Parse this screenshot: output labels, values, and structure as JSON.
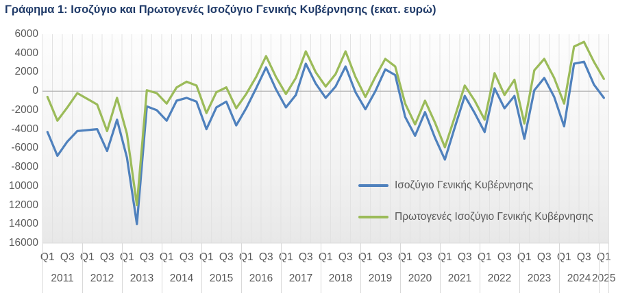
{
  "title": "Γράφημα 1: Ισοζύγιο και Πρωτογενές Ισοζύγιο Γενικής Κυβέρνησης (εκατ. ευρώ)",
  "colors": {
    "title_text": "#1f3a68",
    "axis_text": "#595959",
    "gridline": "#e2e2e2",
    "zero_line": "#ababab",
    "plot_bottom_line": "#dcdcdc",
    "label_separator": "#d9d9d9",
    "series_blue": "#4f81bd",
    "series_green": "#9bbb59"
  },
  "y_axis": {
    "tick_labels_as_shown": [
      "6000",
      "4000",
      "2000",
      "0",
      "-2000",
      "-4000",
      "-6000",
      "-8000",
      "10000",
      "12000",
      "14000",
      "16000"
    ],
    "tick_values": [
      6000,
      4000,
      2000,
      0,
      -2000,
      -4000,
      -6000,
      -8000,
      -10000,
      -12000,
      -14000,
      -16000
    ],
    "note": "minus signs of -10000 to -16000 are clipped at image edge"
  },
  "x_axis": {
    "years": [
      {
        "label": "2011",
        "quarters": [
          "Q1",
          "Q3"
        ]
      },
      {
        "label": "2012",
        "quarters": [
          "Q1",
          "Q3"
        ]
      },
      {
        "label": "2013",
        "quarters": [
          "Q1",
          "Q3"
        ]
      },
      {
        "label": "2014",
        "quarters": [
          "Q1",
          "Q3"
        ]
      },
      {
        "label": "2015",
        "quarters": [
          "Q1",
          "Q3"
        ]
      },
      {
        "label": "2016",
        "quarters": [
          "Q1",
          "Q3"
        ]
      },
      {
        "label": "2017",
        "quarters": [
          "Q1",
          "Q3"
        ]
      },
      {
        "label": "2018",
        "quarters": [
          "Q1",
          "Q3"
        ]
      },
      {
        "label": "2019",
        "quarters": [
          "Q1",
          "Q3"
        ]
      },
      {
        "label": "2020",
        "quarters": [
          "Q1",
          "Q3"
        ]
      },
      {
        "label": "2021",
        "quarters": [
          "Q1",
          "Q3"
        ]
      },
      {
        "label": "2022",
        "quarters": [
          "Q1",
          "Q3"
        ]
      },
      {
        "label": "2023",
        "quarters": [
          "Q1",
          "Q3"
        ]
      },
      {
        "label": "2024",
        "quarters": [
          "Q1",
          "Q3"
        ]
      },
      {
        "label": "2025",
        "quarters": [
          "Q1"
        ]
      }
    ]
  },
  "chart_data": {
    "type": "line",
    "title": "Γράφημα 1: Ισοζύγιο και Πρωτογενές Ισοζύγιο Γενικής Κυβέρνησης (εκατ. ευρώ)",
    "unit": "εκατ. ευρώ",
    "ylim": [
      -16000,
      6000
    ],
    "ytick_step": 2000,
    "grid": "vertical-quarterly",
    "legend_position": "inside-bottom-right",
    "x": [
      "2011Q1",
      "2011Q2",
      "2011Q3",
      "2011Q4",
      "2012Q1",
      "2012Q2",
      "2012Q3",
      "2012Q4",
      "2013Q1",
      "2013Q2",
      "2013Q3",
      "2013Q4",
      "2014Q1",
      "2014Q2",
      "2014Q3",
      "2014Q4",
      "2015Q1",
      "2015Q2",
      "2015Q3",
      "2015Q4",
      "2016Q1",
      "2016Q2",
      "2016Q3",
      "2016Q4",
      "2017Q1",
      "2017Q2",
      "2017Q3",
      "2017Q4",
      "2018Q1",
      "2018Q2",
      "2018Q3",
      "2018Q4",
      "2019Q1",
      "2019Q2",
      "2019Q3",
      "2019Q4",
      "2020Q1",
      "2020Q2",
      "2020Q3",
      "2020Q4",
      "2021Q1",
      "2021Q2",
      "2021Q3",
      "2021Q4",
      "2022Q1",
      "2022Q2",
      "2022Q3",
      "2022Q4",
      "2023Q1",
      "2023Q2",
      "2023Q3",
      "2023Q4",
      "2024Q1",
      "2024Q2",
      "2024Q3",
      "2024Q4",
      "2025Q1"
    ],
    "series": [
      {
        "name": "Ισοζύγιο Γενικής Κυβέρνησης",
        "color": "#4f81bd",
        "values": [
          -4300,
          -6800,
          -5300,
          -4200,
          -4100,
          -4000,
          -6300,
          -3000,
          -7000,
          -14000,
          -1600,
          -2000,
          -3100,
          -1000,
          -700,
          -1100,
          -4000,
          -1700,
          -1100,
          -3600,
          -1800,
          300,
          2500,
          200,
          -1700,
          -400,
          2900,
          800,
          -700,
          500,
          2600,
          -100,
          -1900,
          0,
          2300,
          1700,
          -2700,
          -4700,
          -2200,
          -4900,
          -7200,
          -3800,
          -500,
          -2300,
          -4300,
          300,
          -1800,
          -500,
          -5000,
          100,
          1400,
          -600,
          -3700,
          2900,
          3100,
          700,
          -700
        ]
      },
      {
        "name": "Πρωτογενές Ισοζύγιο Γενικής Κυβέρνησης",
        "color": "#9bbb59",
        "values": [
          -600,
          -3100,
          -1700,
          -200,
          -800,
          -1400,
          -4200,
          -700,
          -4500,
          -12000,
          100,
          -200,
          -1300,
          400,
          1000,
          600,
          -2300,
          -100,
          400,
          -1800,
          -300,
          1500,
          3700,
          1500,
          -300,
          1400,
          4200,
          2000,
          500,
          1800,
          4200,
          1500,
          -600,
          1500,
          3400,
          2600,
          -1300,
          -3500,
          -1000,
          -3300,
          -5900,
          -2700,
          600,
          -1000,
          -3000,
          1900,
          -400,
          1200,
          -3400,
          2200,
          3400,
          1400,
          -1300,
          4700,
          5200,
          3100,
          1300
        ]
      }
    ]
  },
  "legend": {
    "items": [
      "Ισοζύγιο Γενικής Κυβέρνησης",
      "Πρωτογενές Ισοζύγιο Γενικής Κυβέρνησης"
    ]
  }
}
